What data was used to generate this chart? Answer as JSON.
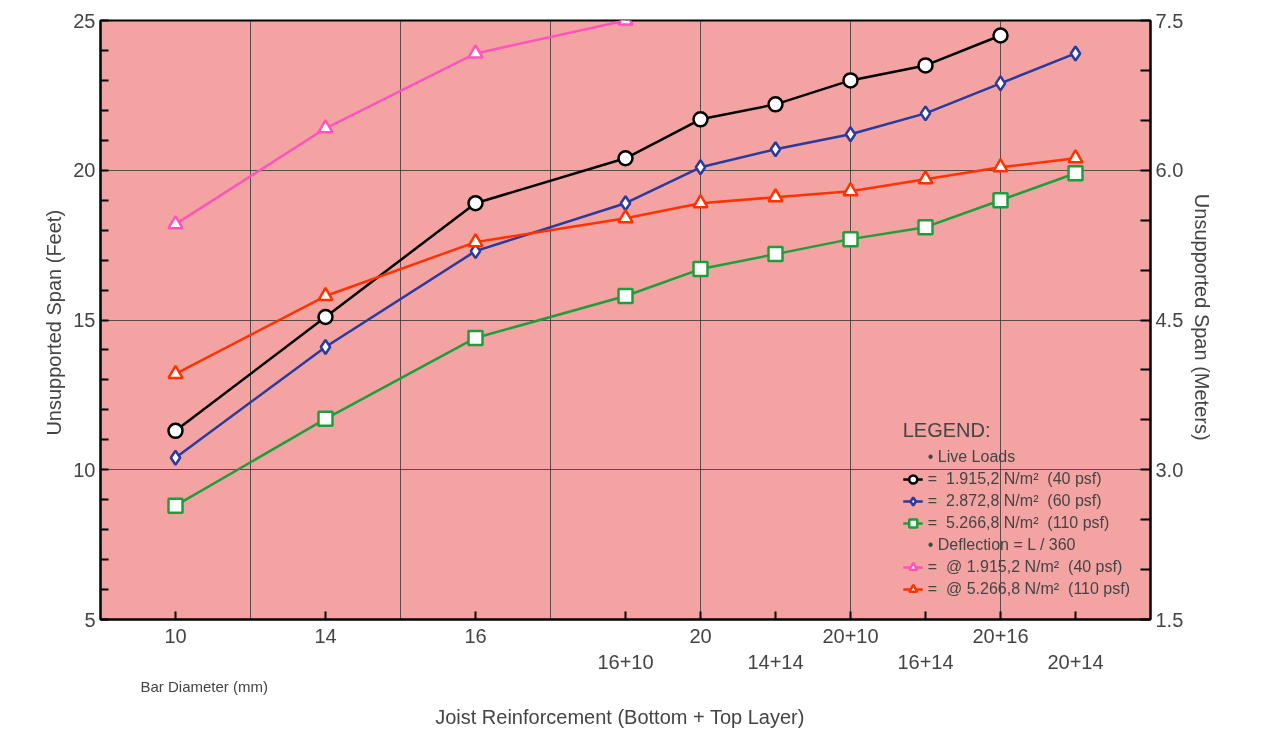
{
  "chart_data": {
    "type": "line",
    "xlabel": "Joist Reinforcement   (Bottom + Top Layer)",
    "ylabel": "Unsupported Span  (Feet)",
    "y2label": "Unsupported Span  (Meters)",
    "legend_title": "LEGEND:",
    "annotations": [
      "Bar Diameter (mm)",
      "• Live Loads",
      "• Deflection = L / 360"
    ],
    "categories": [
      "10",
      null,
      "14",
      null,
      "16",
      null,
      "16+10",
      "20",
      "14+14",
      "20+10",
      "16+14",
      "20+16",
      "20+14"
    ],
    "ylim": [
      5,
      25
    ],
    "yticks": [
      5,
      10,
      15,
      20,
      25,
      {
        "value": 6,
        "label": null
      },
      {
        "value": 7,
        "label": null
      },
      {
        "value": 8,
        "label": null
      },
      {
        "value": 9,
        "label": null
      },
      {
        "value": 11,
        "label": null
      },
      {
        "value": 12,
        "label": null
      },
      {
        "value": 13,
        "label": null
      },
      {
        "value": 14,
        "label": null
      },
      {
        "value": 16,
        "label": null
      },
      {
        "value": 17,
        "label": null
      },
      {
        "value": 18,
        "label": null
      },
      {
        "value": 19,
        "label": null
      },
      {
        "value": 21,
        "label": null
      },
      {
        "value": 22,
        "label": null
      },
      {
        "value": 23,
        "label": null
      },
      {
        "value": 24,
        "label": null
      }
    ],
    "y2lim": [
      1.5,
      7.5
    ],
    "y2ticks": [
      1.5,
      {
        "value": 3,
        "label": "3.0"
      },
      4.5,
      {
        "value": 6,
        "label": "6.0"
      },
      7.5,
      {
        "value": 2,
        "label": null
      },
      {
        "value": 2.5,
        "label": null
      },
      {
        "value": 3.5,
        "label": null
      },
      {
        "value": 4,
        "label": null
      },
      {
        "value": 5,
        "label": null
      },
      {
        "value": 5.5,
        "label": null
      },
      {
        "value": 6.5,
        "label": null
      },
      {
        "value": 7,
        "label": null
      }
    ],
    "grid": true,
    "legend": "bottom right",
    "series": [
      {
        "name": "=  1.915,2 N/m²  (40 psf)",
        "color": "#000000",
        "marker": "circle",
        "values": [
          11.3,
          null,
          15.1,
          null,
          18.9,
          null,
          20.4,
          21.7,
          22.2,
          23.0,
          23.5,
          24.5,
          null
        ]
      },
      {
        "name": "=  2.872,8 N/m²  (60 psf)",
        "color": "#2b3a9e",
        "marker": "diamond",
        "values": [
          10.4,
          null,
          14.1,
          null,
          17.3,
          null,
          18.9,
          20.1,
          20.7,
          21.2,
          21.9,
          22.9,
          23.9
        ]
      },
      {
        "name": "=  5.266,8 N/m²  (110 psf)",
        "color": "#1e9e3a",
        "marker": "square",
        "values": [
          8.8,
          null,
          11.7,
          null,
          14.4,
          null,
          15.8,
          16.7,
          17.2,
          17.7,
          18.1,
          19.0,
          19.9
        ]
      },
      {
        "name": "=  @ 1.915,2 N/m²  (40 psf)",
        "color": "#ff55bb",
        "marker": "triangle",
        "values": [
          18.2,
          null,
          21.4,
          null,
          23.9,
          null,
          25.0,
          null,
          null,
          null,
          null,
          null,
          null
        ]
      },
      {
        "name": "=  @ 5.266,8 N/m²  (110 psf)",
        "color": "#ff3300",
        "marker": "triangle",
        "values": [
          13.2,
          null,
          15.8,
          null,
          17.6,
          null,
          18.4,
          18.9,
          19.1,
          19.3,
          19.7,
          20.1,
          20.4
        ]
      }
    ]
  }
}
